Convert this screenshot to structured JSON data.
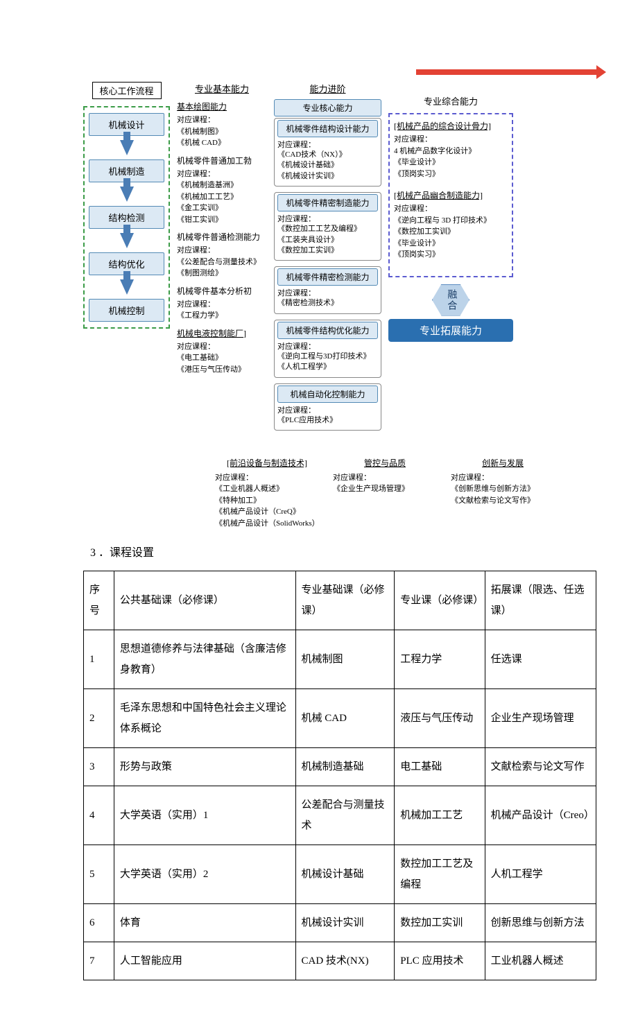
{
  "workflow": {
    "header": "核心工作流程",
    "steps": [
      "机械设计",
      "机械制造",
      "结构检测",
      "结构优化",
      "机械控制"
    ]
  },
  "basic": {
    "title": "专业基本能力",
    "blocks": [
      {
        "title": "基本绘图能力",
        "underline": true,
        "intro": "对应课程：",
        "lines": [
          "《机械制图》",
          "《机械 CAD》"
        ]
      },
      {
        "title": "机械零件普通加工勃",
        "underline": false,
        "intro": "对应课程：",
        "lines": [
          "《机械制造基洲》",
          "《机械加工工艺》",
          "《金工实训》",
          "《钳工实训》"
        ]
      },
      {
        "title": "机械零件普通检测能力",
        "underline": false,
        "intro": "对应课程：",
        "lines": [
          "《公差配合与测量技术》",
          "《制图测绘》"
        ]
      },
      {
        "title": "机械零件基本分析初",
        "underline": false,
        "intro": "对应课程：",
        "lines": [
          "《工程力学》"
        ]
      },
      {
        "title": "机械电液控制能厂]",
        "underline": true,
        "intro": "对应课程：",
        "lines": [
          "《电工基础》",
          "《港压与气压传动》"
        ]
      }
    ]
  },
  "core": {
    "head": "能力进阶",
    "pill": "专业核心能力",
    "cards": [
      {
        "title": "机械零件结构设计能力",
        "intro": "对应课程：",
        "lines": [
          "《CAD技术（NX）》",
          "《机械设计基础》",
          "《机械设计实训》"
        ]
      },
      {
        "title": "机械零件精密制造能力",
        "intro": "对应课程：",
        "lines": [
          "《数控加工工艺及编程》",
          "《工装夹具设计》",
          "《数控加工实训》"
        ]
      },
      {
        "title": "机械零件精密检测能力",
        "intro": "对应课程：",
        "lines": [
          "《精密检测技术》"
        ]
      },
      {
        "title": "机械零件结构优化能力",
        "intro": "对应课程：",
        "lines": [
          "《逆向工程与3D打印技术》",
          "《人机工程学》"
        ]
      },
      {
        "title": "机械自动化控制能力",
        "intro": "对应课程：",
        "lines": [
          "《PLC应用技术》"
        ]
      }
    ]
  },
  "comp": {
    "head": "专业综合能力",
    "blocks": [
      {
        "title": "[机械产品的综合设计骨力]",
        "intro": "对应课程：",
        "lines": [
          "4 机械产品数字化设计》",
          "《毕业设计》",
          "《顶岗实习》"
        ]
      },
      {
        "title": "[机械产品幽合制造能力]",
        "intro": "对应课程：",
        "lines": [
          "《逆向工程与 3D 打印技术》",
          "《数控加工实训》",
          "《毕业设计》",
          "《顶岗实习》"
        ]
      }
    ],
    "fuse": "融合",
    "banner": "专业拓展能力"
  },
  "bottom": [
    {
      "title": "[前沿设备与制造技术]",
      "intro": "对应课程：",
      "lines": [
        "《工业机器人概述》",
        "《特种加工》",
        "《机械产品设计（CreQ》",
        "《机械产品设计（SolidWorks）"
      ]
    },
    {
      "title": "管控与品质",
      "intro": "对应课程：",
      "lines": [
        "《企业生产现场管理》"
      ]
    },
    {
      "title": "创新与发展",
      "intro": "对应课程：",
      "lines": [
        "《创新思维与创新方法》",
        "《文献检索与论文写作》"
      ]
    }
  ],
  "sectionTitle": "3 ．课程设置",
  "table": {
    "headers": [
      "序号",
      "公共基础课（必修课）",
      "专业基础课（必修课）",
      "专业课（必修课）",
      "拓展课（限选、任选课）"
    ],
    "rows": [
      [
        "1",
        "思想道德修养与法律基础（含廉洁修身教育）",
        "机械制图",
        "工程力学",
        "任选课"
      ],
      [
        "2",
        "毛泽东思想和中国特色社会主义理论体系概论",
        "机械 CAD",
        "液压与气压传动",
        "企业生产现场管理"
      ],
      [
        "3",
        "形势与政策",
        "机械制造基础",
        "电工基础",
        "文献检索与论文写作"
      ],
      [
        "4",
        "大学英语（实用）1",
        "公差配合与测量技术",
        "机械加工工艺",
        "机械产品设计（Creo）"
      ],
      [
        "5",
        "大学英语（实用）2",
        "机械设计基础",
        "数控加工工艺及编程",
        "人机工程学"
      ],
      [
        "6",
        "体育",
        "机械设计实训",
        "数控加工实训",
        "创新思维与创新方法"
      ],
      [
        "7",
        "人工智能应用",
        "CAD 技术(NX)",
        "PLC 应用技术",
        "工业机器人概述"
      ]
    ]
  },
  "colors": {
    "workflowFill": "#dce9f4",
    "workflowBorder": "#538ab5",
    "dashGreen": "#3b9b47",
    "dashPurple": "#5b5bd0",
    "banner": "#2a6fb0",
    "redArrow": "#e34234"
  }
}
